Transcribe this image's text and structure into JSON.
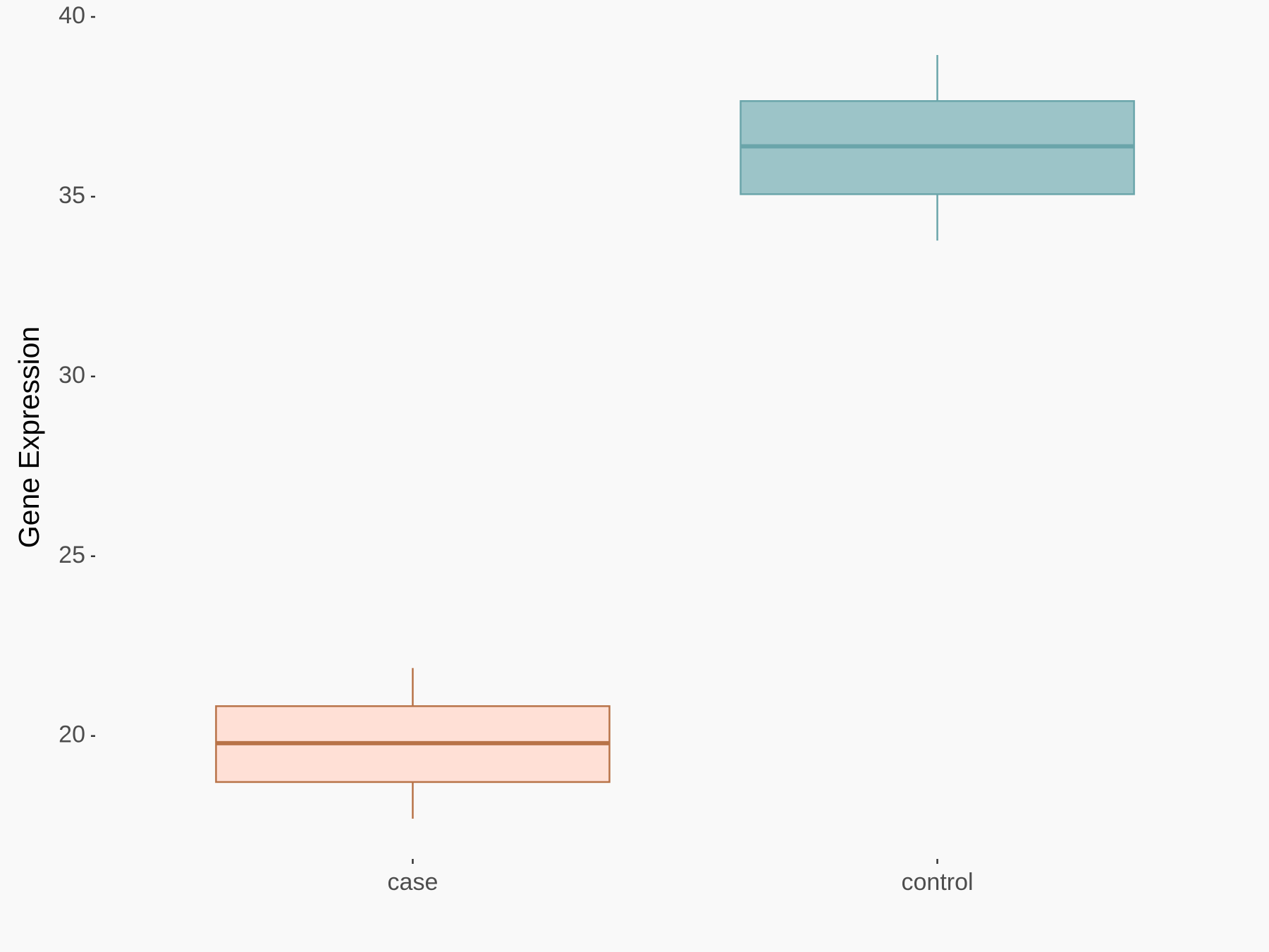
{
  "chart_data": {
    "type": "box",
    "y_label": "Gene Expression",
    "categories": [
      "case",
      "control"
    ],
    "boxes": [
      {
        "min": 17.7,
        "q1": 18.72,
        "median": 19.8,
        "q3": 20.83,
        "max": 21.89,
        "color": "#b87348",
        "fill": "#ffe0d6"
      },
      {
        "min": 33.78,
        "q1": 35.07,
        "median": 36.4,
        "q3": 37.66,
        "max": 38.94,
        "color": "#6aa5aa",
        "fill": "#9cc4c8"
      }
    ],
    "ylim": [
      16.64,
      40.0
    ],
    "yticks": [
      20,
      25,
      30,
      35,
      40
    ],
    "grid": false
  }
}
